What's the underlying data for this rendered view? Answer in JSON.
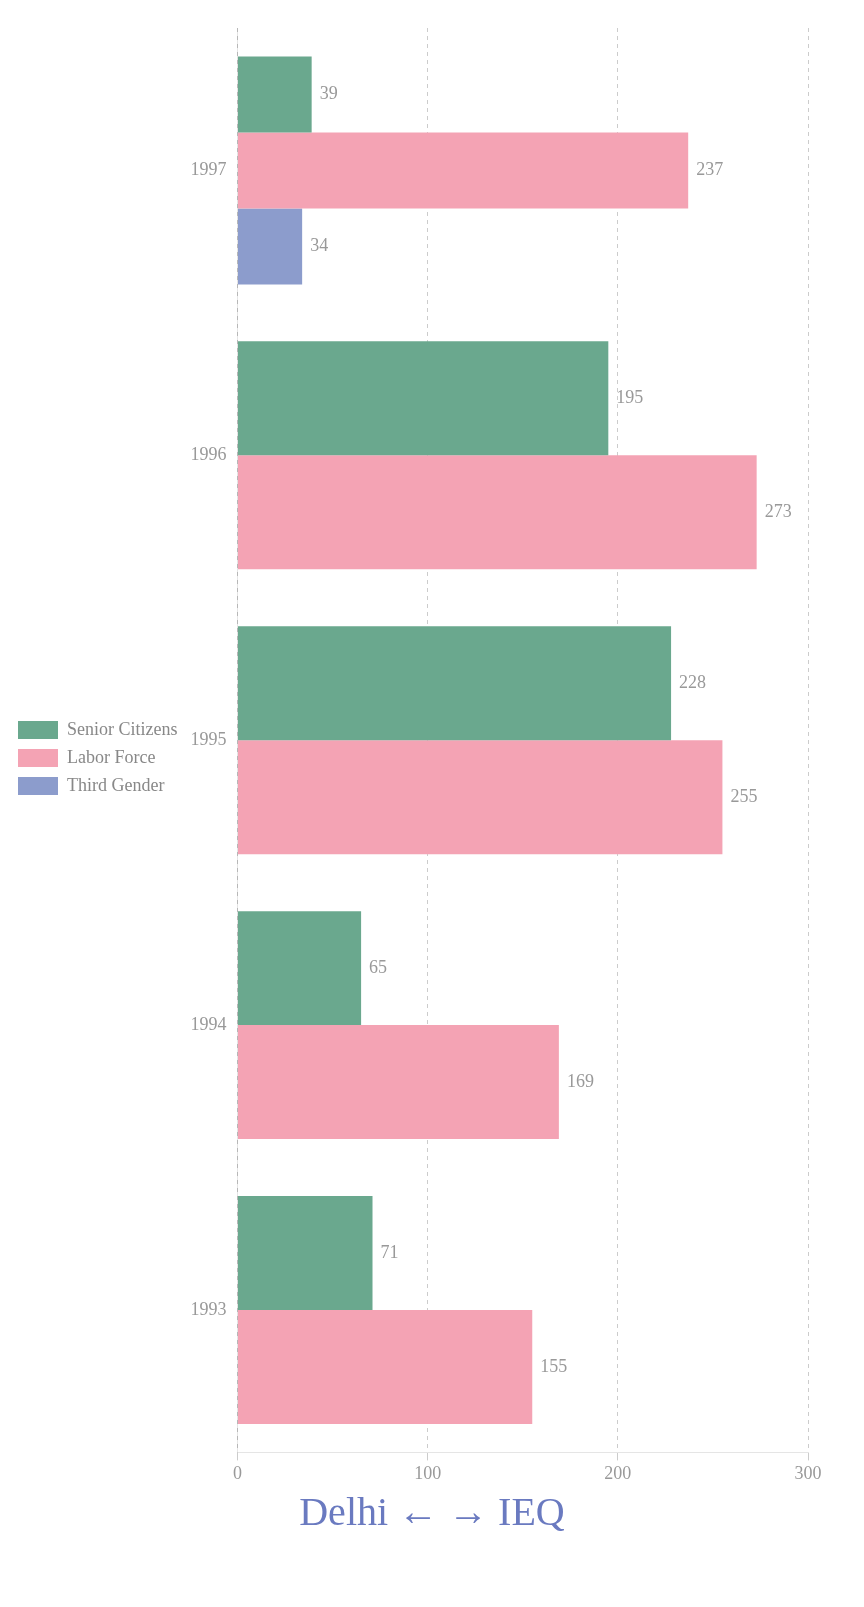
{
  "chart_data": {
    "type": "bar",
    "orientation": "horizontal",
    "categories": [
      "1997",
      "1996",
      "1995",
      "1994",
      "1993"
    ],
    "series": [
      {
        "name": "Senior Citizens",
        "color": "#6aa88e",
        "values": [
          39,
          195,
          228,
          65,
          71
        ]
      },
      {
        "name": "Labor Force",
        "color": "#f4a3b4",
        "values": [
          237,
          273,
          255,
          169,
          155
        ]
      },
      {
        "name": "Third Gender",
        "color": "#8c9ccc",
        "values": [
          34,
          null,
          null,
          null,
          null
        ]
      }
    ],
    "xlim": [
      0,
      300
    ],
    "xticks": [
      0,
      100,
      200,
      300
    ],
    "grid": "x",
    "legend": "left",
    "data_labels": true,
    "annotations": [
      "Delhi ← → IEQ"
    ]
  }
}
